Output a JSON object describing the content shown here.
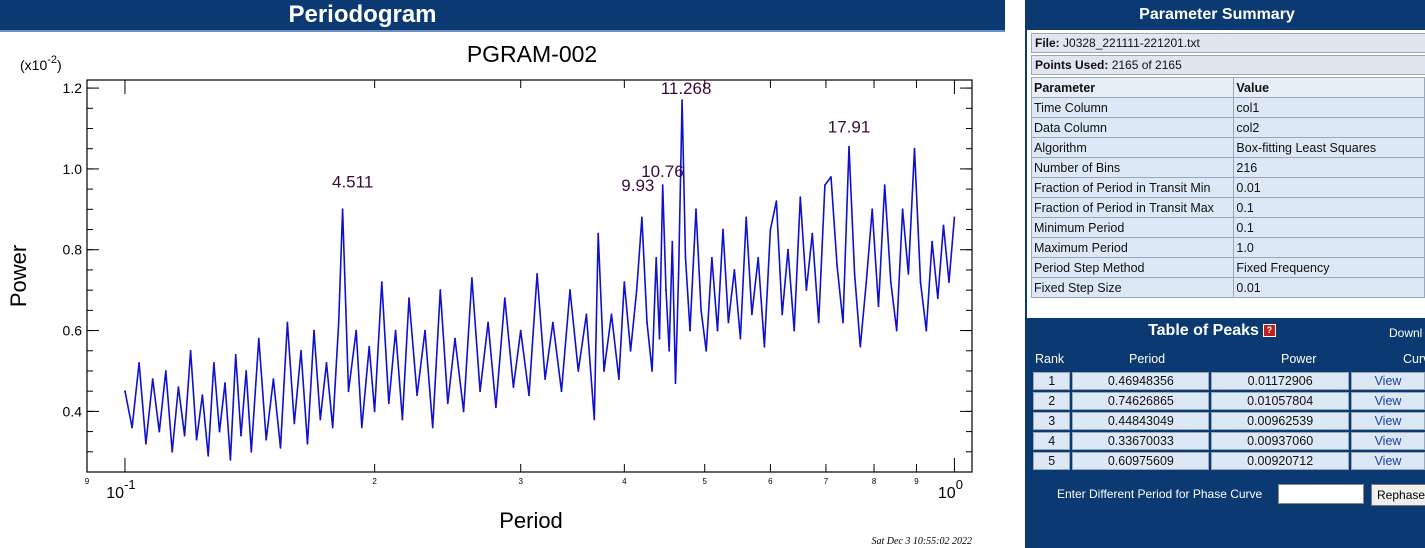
{
  "left_panel": {
    "title": "Periodogram"
  },
  "right_panel": {
    "title": "Parameter Summary",
    "file_label": "File:",
    "file_value": "J0328_221111-221201.txt",
    "points_label": "Points Used:",
    "points_value": "2165 of 2165",
    "param_headers": [
      "Parameter",
      "Value"
    ],
    "params": [
      {
        "name": "Time Column",
        "value": "col1"
      },
      {
        "name": "Data Column",
        "value": "col2"
      },
      {
        "name": "Algorithm",
        "value": "Box-fitting Least Squares"
      },
      {
        "name": "Number of Bins",
        "value": "216"
      },
      {
        "name": "Fraction of Period in Transit Min",
        "value": "0.01"
      },
      {
        "name": "Fraction of Period in Transit Max",
        "value": "0.1"
      },
      {
        "name": "Minimum Period",
        "value": "0.1"
      },
      {
        "name": "Maximum Period",
        "value": "1.0"
      },
      {
        "name": "Period Step Method",
        "value": "Fixed Frequency"
      },
      {
        "name": "Fixed Step Size",
        "value": "0.01"
      }
    ],
    "peaks_title": "Table of Peaks",
    "peaks_help": "?",
    "download_label": "Downl",
    "peaks_headers": [
      "Rank",
      "Period",
      "Power",
      "Curv"
    ],
    "peaks": [
      {
        "rank": "1",
        "period": "0.46948356",
        "power": "0.01172906",
        "curve": "View"
      },
      {
        "rank": "2",
        "period": "0.74626865",
        "power": "0.01057804",
        "curve": "View"
      },
      {
        "rank": "3",
        "period": "0.44843049",
        "power": "0.00962539",
        "curve": "View"
      },
      {
        "rank": "4",
        "period": "0.33670033",
        "power": "0.00937060",
        "curve": "View"
      },
      {
        "rank": "5",
        "period": "0.60975609",
        "power": "0.00920712",
        "curve": "View"
      }
    ],
    "rephase_label": "Enter Different Period for Phase Curve",
    "rephase_input_value": "",
    "rephase_button": "Rephase"
  },
  "chart_data": {
    "type": "line",
    "title": "PGRAM-002",
    "xlabel": "Period",
    "ylabel": "Power",
    "y_multiplier_label": "(x10^-2)",
    "xscale": "log",
    "xlim": [
      0.09,
      1.05
    ],
    "ylim": [
      0.25,
      1.22
    ],
    "yticks": [
      0.4,
      0.6,
      0.8,
      1.0,
      1.2
    ],
    "ytick_labels": [
      "0.4",
      "0.6",
      "0.8",
      "1.0",
      "1.2"
    ],
    "xtick_major_labels": [
      "10^-1",
      "10^0"
    ],
    "xtick_minor_labels": [
      "9",
      "2",
      "3",
      "4",
      "5",
      "6",
      "7",
      "8",
      "9"
    ],
    "line_color": "#1010d0",
    "grid": false,
    "timestamp": "Sat Dec  3 10:55:02 2022",
    "annotations": [
      {
        "text": "4.511",
        "x": 0.183,
        "y": 0.9
      },
      {
        "text": "9.93",
        "x": 0.4199,
        "y": 0.935
      },
      {
        "text": "10.76",
        "x": 0.4446,
        "y": 0.965
      },
      {
        "text": "11.268",
        "x": 0.4695,
        "y": 1.17
      },
      {
        "text": "17.91",
        "x": 0.7463,
        "y": 1.055
      }
    ],
    "series": [
      {
        "values": [
          [
            0.1,
            0.45
          ],
          [
            0.102,
            0.36
          ],
          [
            0.104,
            0.52
          ],
          [
            0.106,
            0.32
          ],
          [
            0.108,
            0.48
          ],
          [
            0.11,
            0.35
          ],
          [
            0.112,
            0.5
          ],
          [
            0.114,
            0.3
          ],
          [
            0.116,
            0.46
          ],
          [
            0.118,
            0.34
          ],
          [
            0.12,
            0.55
          ],
          [
            0.122,
            0.33
          ],
          [
            0.124,
            0.44
          ],
          [
            0.126,
            0.29
          ],
          [
            0.128,
            0.52
          ],
          [
            0.13,
            0.35
          ],
          [
            0.132,
            0.47
          ],
          [
            0.134,
            0.28
          ],
          [
            0.136,
            0.54
          ],
          [
            0.138,
            0.34
          ],
          [
            0.14,
            0.5
          ],
          [
            0.142,
            0.3
          ],
          [
            0.145,
            0.58
          ],
          [
            0.148,
            0.33
          ],
          [
            0.151,
            0.48
          ],
          [
            0.154,
            0.31
          ],
          [
            0.157,
            0.62
          ],
          [
            0.16,
            0.37
          ],
          [
            0.163,
            0.55
          ],
          [
            0.166,
            0.32
          ],
          [
            0.169,
            0.6
          ],
          [
            0.172,
            0.38
          ],
          [
            0.175,
            0.52
          ],
          [
            0.178,
            0.36
          ],
          [
            0.181,
            0.62
          ],
          [
            0.183,
            0.9
          ],
          [
            0.186,
            0.45
          ],
          [
            0.19,
            0.6
          ],
          [
            0.193,
            0.36
          ],
          [
            0.197,
            0.56
          ],
          [
            0.2,
            0.4
          ],
          [
            0.204,
            0.72
          ],
          [
            0.208,
            0.42
          ],
          [
            0.212,
            0.6
          ],
          [
            0.216,
            0.38
          ],
          [
            0.22,
            0.68
          ],
          [
            0.225,
            0.44
          ],
          [
            0.23,
            0.6
          ],
          [
            0.235,
            0.36
          ],
          [
            0.24,
            0.7
          ],
          [
            0.245,
            0.42
          ],
          [
            0.25,
            0.58
          ],
          [
            0.256,
            0.4
          ],
          [
            0.262,
            0.73
          ],
          [
            0.268,
            0.45
          ],
          [
            0.274,
            0.62
          ],
          [
            0.28,
            0.41
          ],
          [
            0.287,
            0.68
          ],
          [
            0.294,
            0.46
          ],
          [
            0.3,
            0.6
          ],
          [
            0.307,
            0.44
          ],
          [
            0.314,
            0.74
          ],
          [
            0.321,
            0.48
          ],
          [
            0.328,
            0.62
          ],
          [
            0.336,
            0.45
          ],
          [
            0.344,
            0.7
          ],
          [
            0.352,
            0.5
          ],
          [
            0.36,
            0.64
          ],
          [
            0.368,
            0.38
          ],
          [
            0.372,
            0.84
          ],
          [
            0.378,
            0.5
          ],
          [
            0.386,
            0.64
          ],
          [
            0.394,
            0.48
          ],
          [
            0.4,
            0.72
          ],
          [
            0.407,
            0.55
          ],
          [
            0.414,
            0.7
          ],
          [
            0.42,
            0.88
          ],
          [
            0.426,
            0.62
          ],
          [
            0.432,
            0.5
          ],
          [
            0.437,
            0.78
          ],
          [
            0.441,
            0.58
          ],
          [
            0.445,
            0.96
          ],
          [
            0.449,
            0.7
          ],
          [
            0.453,
            0.55
          ],
          [
            0.457,
            0.82
          ],
          [
            0.461,
            0.47
          ],
          [
            0.465,
            0.74
          ],
          [
            0.4695,
            1.17
          ],
          [
            0.474,
            0.78
          ],
          [
            0.48,
            0.6
          ],
          [
            0.488,
            0.9
          ],
          [
            0.495,
            0.65
          ],
          [
            0.502,
            0.55
          ],
          [
            0.51,
            0.78
          ],
          [
            0.518,
            0.6
          ],
          [
            0.526,
            0.85
          ],
          [
            0.534,
            0.62
          ],
          [
            0.543,
            0.75
          ],
          [
            0.552,
            0.58
          ],
          [
            0.561,
            0.88
          ],
          [
            0.57,
            0.64
          ],
          [
            0.58,
            0.78
          ],
          [
            0.59,
            0.56
          ],
          [
            0.6,
            0.85
          ],
          [
            0.61,
            0.92
          ],
          [
            0.62,
            0.64
          ],
          [
            0.63,
            0.8
          ],
          [
            0.641,
            0.6
          ],
          [
            0.652,
            0.93
          ],
          [
            0.663,
            0.7
          ],
          [
            0.674,
            0.84
          ],
          [
            0.686,
            0.62
          ],
          [
            0.698,
            0.96
          ],
          [
            0.71,
            0.98
          ],
          [
            0.722,
            0.76
          ],
          [
            0.734,
            0.62
          ],
          [
            0.7463,
            1.055
          ],
          [
            0.758,
            0.74
          ],
          [
            0.77,
            0.56
          ],
          [
            0.783,
            0.72
          ],
          [
            0.796,
            0.9
          ],
          [
            0.81,
            0.66
          ],
          [
            0.824,
            0.96
          ],
          [
            0.838,
            0.72
          ],
          [
            0.852,
            0.6
          ],
          [
            0.866,
            0.9
          ],
          [
            0.88,
            0.74
          ],
          [
            0.895,
            1.05
          ],
          [
            0.91,
            0.72
          ],
          [
            0.925,
            0.6
          ],
          [
            0.94,
            0.82
          ],
          [
            0.955,
            0.68
          ],
          [
            0.97,
            0.86
          ],
          [
            0.985,
            0.72
          ],
          [
            1.0,
            0.88
          ]
        ]
      }
    ]
  }
}
